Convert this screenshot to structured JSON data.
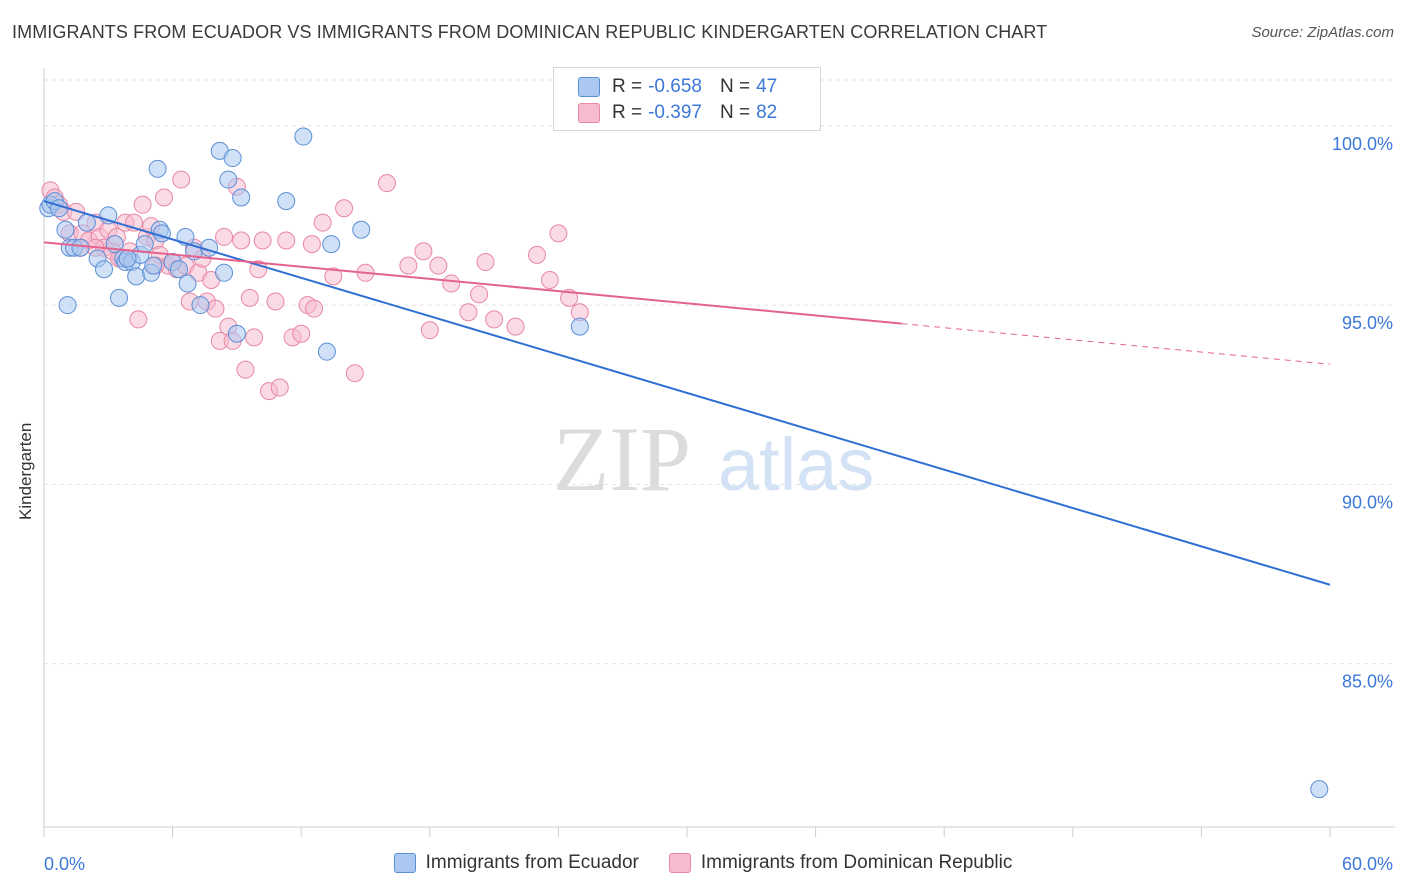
{
  "title": "IMMIGRANTS FROM ECUADOR VS IMMIGRANTS FROM DOMINICAN REPUBLIC KINDERGARTEN CORRELATION CHART",
  "source": "Source: ZipAtlas.com",
  "watermark": {
    "zip": "ZIP",
    "atlas": "atlas"
  },
  "legend": {
    "r_label": "R =",
    "n_label": "N =",
    "rows": [
      {
        "r": "-0.658",
        "n": "47"
      },
      {
        "r": "-0.397",
        "n": "82"
      }
    ]
  },
  "colors": {
    "ecuador_fill": "#aac8f0",
    "ecuador_stroke": "#5b8fd6",
    "ecuador_line": "#2f6fd4",
    "dominican_fill": "#f6bccd",
    "dominican_stroke": "#e887a6",
    "dominican_line": "#e4638e",
    "tick_text": "#3b78d8",
    "grid": "#e2e2e2"
  },
  "chart_data": {
    "type": "scatter",
    "title": "IMMIGRANTS FROM ECUADOR VS IMMIGRANTS FROM DOMINICAN REPUBLIC KINDERGARTEN CORRELATION CHART",
    "xlabel": "",
    "ylabel": "Kindergarten",
    "xlim": [
      0,
      60
    ],
    "ylim": [
      80.5,
      101.5
    ],
    "x_tick_labels": [
      "0.0%",
      "60.0%"
    ],
    "y_ticks": [
      85,
      90,
      95,
      100
    ],
    "y_tick_labels": [
      "85.0%",
      "90.0%",
      "95.0%",
      "100.0%"
    ],
    "grid": true,
    "legend_position": "top-center",
    "series": [
      {
        "name": "Immigrants from Ecuador",
        "points": [
          [
            0.2,
            97.7
          ],
          [
            0.3,
            97.8
          ],
          [
            0.5,
            97.9
          ],
          [
            0.7,
            97.7
          ],
          [
            1.0,
            97.1
          ],
          [
            1.2,
            96.6
          ],
          [
            1.4,
            96.6
          ],
          [
            1.7,
            96.6
          ],
          [
            2.0,
            97.3
          ],
          [
            2.5,
            96.3
          ],
          [
            2.8,
            96.0
          ],
          [
            3.0,
            97.5
          ],
          [
            3.3,
            96.7
          ],
          [
            3.5,
            95.2
          ],
          [
            3.7,
            96.3
          ],
          [
            3.8,
            96.2
          ],
          [
            4.1,
            96.2
          ],
          [
            4.3,
            95.8
          ],
          [
            4.5,
            96.4
          ],
          [
            4.7,
            96.7
          ],
          [
            5.0,
            95.9
          ],
          [
            5.1,
            96.1
          ],
          [
            5.3,
            98.8
          ],
          [
            5.4,
            97.1
          ],
          [
            5.5,
            97.0
          ],
          [
            6.0,
            96.2
          ],
          [
            6.3,
            96.0
          ],
          [
            6.6,
            96.9
          ],
          [
            6.7,
            95.6
          ],
          [
            7.0,
            96.5
          ],
          [
            7.3,
            95.0
          ],
          [
            7.7,
            96.6
          ],
          [
            8.2,
            99.3
          ],
          [
            8.4,
            95.9
          ],
          [
            8.6,
            98.5
          ],
          [
            8.8,
            99.1
          ],
          [
            9.0,
            94.2
          ],
          [
            9.2,
            98.0
          ],
          [
            11.3,
            97.9
          ],
          [
            12.1,
            99.7
          ],
          [
            13.2,
            93.7
          ],
          [
            13.4,
            96.7
          ],
          [
            14.8,
            97.1
          ],
          [
            1.1,
            95.0
          ],
          [
            3.9,
            96.3
          ],
          [
            25.0,
            94.4
          ],
          [
            59.5,
            81.5
          ]
        ]
      },
      {
        "name": "Immigrants from Dominican Republic",
        "points": [
          [
            0.3,
            98.2
          ],
          [
            0.5,
            98.0
          ],
          [
            0.7,
            97.8
          ],
          [
            0.9,
            97.6
          ],
          [
            1.2,
            97.0
          ],
          [
            1.5,
            97.6
          ],
          [
            1.8,
            97.0
          ],
          [
            2.1,
            96.8
          ],
          [
            2.4,
            97.3
          ],
          [
            2.6,
            96.9
          ],
          [
            2.8,
            96.6
          ],
          [
            3.0,
            97.1
          ],
          [
            3.2,
            96.5
          ],
          [
            3.4,
            96.9
          ],
          [
            3.6,
            96.3
          ],
          [
            3.8,
            97.3
          ],
          [
            4.0,
            96.5
          ],
          [
            4.2,
            97.3
          ],
          [
            4.4,
            94.6
          ],
          [
            4.6,
            97.8
          ],
          [
            4.8,
            96.9
          ],
          [
            5.0,
            97.2
          ],
          [
            5.2,
            96.8
          ],
          [
            5.4,
            96.4
          ],
          [
            5.6,
            98.0
          ],
          [
            5.8,
            96.1
          ],
          [
            6.0,
            96.2
          ],
          [
            6.2,
            96.0
          ],
          [
            6.4,
            98.5
          ],
          [
            6.6,
            96.1
          ],
          [
            6.8,
            95.1
          ],
          [
            7.0,
            96.6
          ],
          [
            7.2,
            95.9
          ],
          [
            7.4,
            96.3
          ],
          [
            7.6,
            95.1
          ],
          [
            7.8,
            95.7
          ],
          [
            8.0,
            94.9
          ],
          [
            8.2,
            94.0
          ],
          [
            8.4,
            96.9
          ],
          [
            8.6,
            94.4
          ],
          [
            8.8,
            94.0
          ],
          [
            9.0,
            98.3
          ],
          [
            9.2,
            96.8
          ],
          [
            9.4,
            93.2
          ],
          [
            9.6,
            95.2
          ],
          [
            9.8,
            94.1
          ],
          [
            10.0,
            96.0
          ],
          [
            10.2,
            96.8
          ],
          [
            10.5,
            92.6
          ],
          [
            10.8,
            95.1
          ],
          [
            11.0,
            92.7
          ],
          [
            11.3,
            96.8
          ],
          [
            11.6,
            94.1
          ],
          [
            12.0,
            94.2
          ],
          [
            12.3,
            95.0
          ],
          [
            12.6,
            94.9
          ],
          [
            13.0,
            97.3
          ],
          [
            13.5,
            95.8
          ],
          [
            14.0,
            97.7
          ],
          [
            14.5,
            93.1
          ],
          [
            15.0,
            95.9
          ],
          [
            16.0,
            98.4
          ],
          [
            17.0,
            96.1
          ],
          [
            17.7,
            96.5
          ],
          [
            18.0,
            94.3
          ],
          [
            18.4,
            96.1
          ],
          [
            19.0,
            95.6
          ],
          [
            19.8,
            94.8
          ],
          [
            20.3,
            95.3
          ],
          [
            20.6,
            96.2
          ],
          [
            21.0,
            94.6
          ],
          [
            22.0,
            94.4
          ],
          [
            23.0,
            96.4
          ],
          [
            23.6,
            95.7
          ],
          [
            24.0,
            97.0
          ],
          [
            24.5,
            95.2
          ],
          [
            25.0,
            94.8
          ],
          [
            1.7,
            96.6
          ],
          [
            2.4,
            96.6
          ],
          [
            3.5,
            96.3
          ],
          [
            5.2,
            96.1
          ],
          [
            12.5,
            96.7
          ]
        ]
      }
    ],
    "trendlines": [
      {
        "series": "Immigrants from Ecuador",
        "x0": 0,
        "y0": 97.9,
        "x1": 60,
        "y1": 87.2,
        "dashed_from": null
      },
      {
        "series": "Immigrants from Dominican Republic",
        "x0": 0,
        "y0": 96.75,
        "x1": 60,
        "y1": 93.35,
        "dashed_from": 40
      }
    ]
  },
  "bottom_legend": [
    "Immigrants from Ecuador",
    "Immigrants from Dominican Republic"
  ]
}
